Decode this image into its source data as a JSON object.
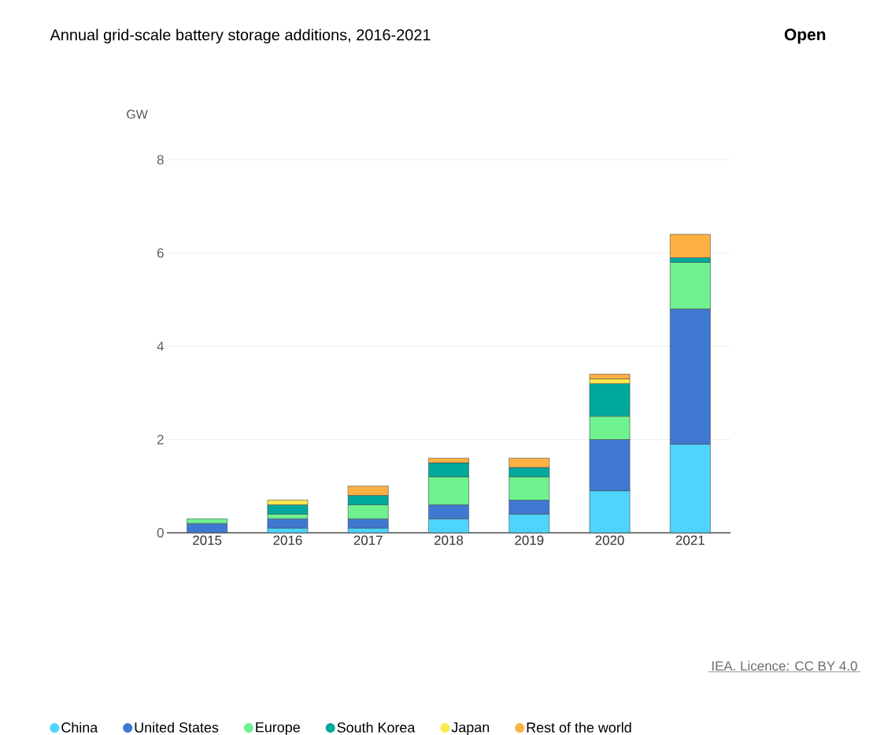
{
  "chart_data": {
    "type": "bar",
    "title": "Annual grid-scale battery storage additions, 2016-2021",
    "ylabel": "GW",
    "categories": [
      "2015",
      "2016",
      "2017",
      "2018",
      "2019",
      "2020",
      "2021"
    ],
    "series": [
      {
        "name": "China",
        "color": "#4dd5fe",
        "values": [
          null,
          0.1,
          0.1,
          0.3,
          0.4,
          0.9,
          1.9
        ]
      },
      {
        "name": "United States",
        "color": "#3f78d0",
        "values": [
          0.2,
          0.2,
          0.2,
          0.3,
          0.3,
          1.1,
          2.9
        ]
      },
      {
        "name": "Europe",
        "color": "#6df28f",
        "values": [
          0.1,
          0.1,
          0.3,
          0.6,
          0.5,
          0.5,
          1.0
        ]
      },
      {
        "name": "South Korea",
        "color": "#00a99d",
        "values": [
          null,
          0.2,
          0.2,
          0.3,
          0.2,
          0.7,
          0.1
        ]
      },
      {
        "name": "Japan",
        "color": "#fde94a",
        "values": [
          null,
          0.1,
          null,
          null,
          null,
          0.1,
          null
        ]
      },
      {
        "name": "Rest of the world",
        "color": "#fdb143",
        "values": [
          null,
          null,
          0.2,
          0.1,
          0.2,
          0.1,
          0.5
        ]
      }
    ],
    "stacked": true,
    "ylim": [
      0,
      8
    ],
    "yticks": [
      0,
      2,
      4,
      6,
      8
    ],
    "grid": "y",
    "legend": "bottom",
    "annotations": [
      "Open",
      "IEA. Licence: CC BY 4.0"
    ]
  }
}
